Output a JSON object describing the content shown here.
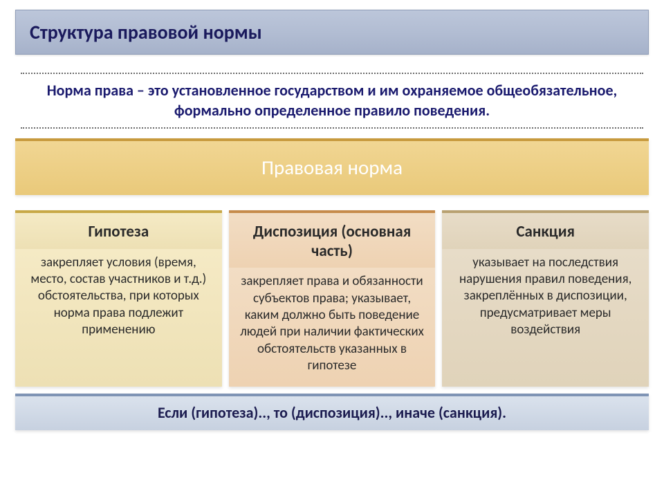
{
  "title": "Структура правовой нормы",
  "definition": "Норма права – это установленное государством и им охраняемое общеобязательное, формально определенное правило поведения.",
  "central_label": "Правовая норма",
  "columns": [
    {
      "title": "Гипотеза",
      "body": "закрепляет условия (время, место, состав участников и т.д.) обстоятельства, при которых норма права подлежит применению",
      "header_bg": "#f0e3b8",
      "accent": "#c8a847"
    },
    {
      "title": "Диспозиция (основная часть)",
      "body": "закрепляет права и обязанности субъектов права; указывает, каким должно быть поведение людей при наличии фактических обстоятельств указанных в гипотезе",
      "header_bg": "#f0d8bb",
      "accent": "#c68b4b"
    },
    {
      "title": "Санкция",
      "body": "указывает на последствия нарушения правил поведения, закреплённых в диспозиции, предусматривает меры воздействия",
      "header_bg": "#e4d9c2",
      "accent": "#b8a171"
    }
  ],
  "formula": "Если (гипотеза).., то (диспозиция).., иначе (санкция).",
  "styling": {
    "title_bar_bg": "#aebad0",
    "title_text_color": "#1a1a5c",
    "definition_border": "#6a6a6a",
    "definition_text_color": "#1a1a6e",
    "central_bg": "#ebce82",
    "central_accent": "#c79a3d",
    "central_text_color": "#ffffff",
    "formula_bg": "#cfd8e5",
    "formula_accent": "#7f94b5",
    "formula_text_color": "#1b1b4f",
    "page_bg": "#ffffff",
    "title_fontsize": 28,
    "definition_fontsize": 22,
    "central_fontsize": 29,
    "col_title_fontsize": 23,
    "col_body_fontsize": 19,
    "formula_fontsize": 22
  }
}
